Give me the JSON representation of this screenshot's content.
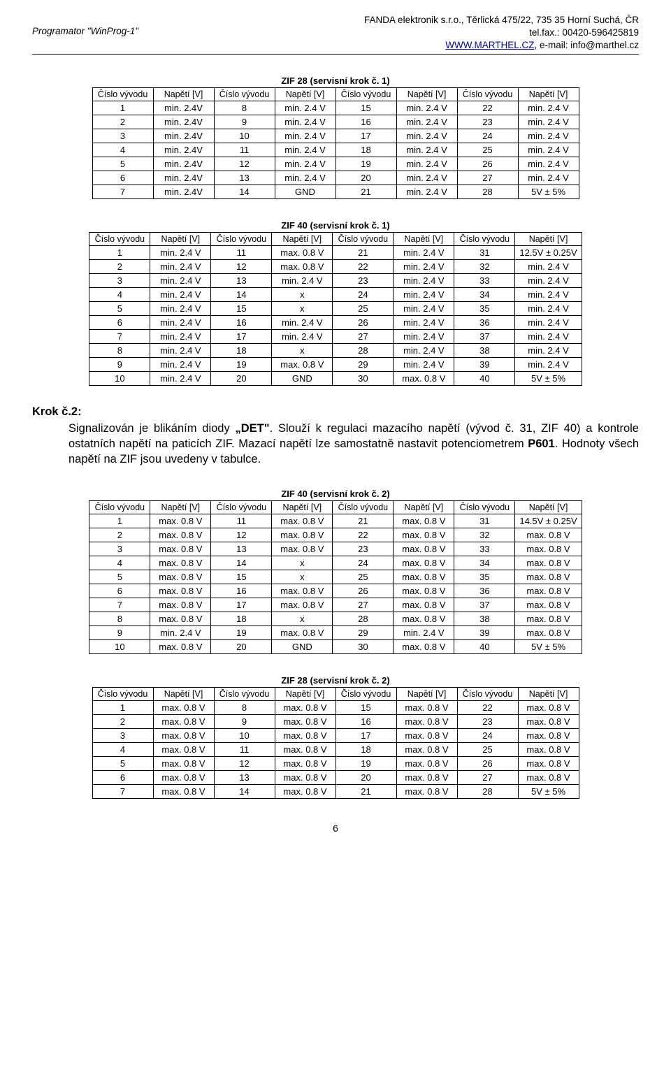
{
  "header": {
    "left": "Programator \"WinProg-1\"",
    "right1": "FANDA elektronik s.r.o., Těrlická 475/22, 735 35 Horní Suchá, ČR",
    "right2": "tel.fax.: 00420-596425819",
    "right3a": "WWW.MARTHEL.CZ",
    "right3b": ", e-mail: info@marthel.cz"
  },
  "labels": {
    "cislo": "Číslo vývodu",
    "napeti": "Napětí [V]"
  },
  "tables": {
    "t1": {
      "title": "ZIF 28 (servisní krok č. 1)",
      "cols": 4,
      "rows": [
        [
          "1",
          "min. 2.4V",
          "8",
          "min. 2.4 V",
          "15",
          "min. 2.4 V",
          "22",
          "min. 2.4 V"
        ],
        [
          "2",
          "min. 2.4V",
          "9",
          "min. 2.4 V",
          "16",
          "min. 2.4 V",
          "23",
          "min. 2.4 V"
        ],
        [
          "3",
          "min. 2.4V",
          "10",
          "min. 2.4 V",
          "17",
          "min. 2.4 V",
          "24",
          "min. 2.4 V"
        ],
        [
          "4",
          "min. 2.4V",
          "11",
          "min. 2.4 V",
          "18",
          "min. 2.4 V",
          "25",
          "min. 2.4 V"
        ],
        [
          "5",
          "min. 2.4V",
          "12",
          "min. 2.4 V",
          "19",
          "min. 2.4 V",
          "26",
          "min. 2.4 V"
        ],
        [
          "6",
          "min. 2.4V",
          "13",
          "min. 2.4 V",
          "20",
          "min. 2.4 V",
          "27",
          "min. 2.4 V"
        ],
        [
          "7",
          "min. 2.4V",
          "14",
          "GND",
          "21",
          "min. 2.4 V",
          "28",
          "5V ± 5%"
        ]
      ]
    },
    "t2": {
      "title": "ZIF 40 (servisní krok č. 1)",
      "cols": 4,
      "rows": [
        [
          "1",
          "min. 2.4 V",
          "11",
          "max. 0.8 V",
          "21",
          "min. 2.4 V",
          "31",
          "12.5V ± 0.25V"
        ],
        [
          "2",
          "min. 2.4 V",
          "12",
          "max. 0.8 V",
          "22",
          "min. 2.4 V",
          "32",
          "min. 2.4 V"
        ],
        [
          "3",
          "min. 2.4 V",
          "13",
          "min. 2.4 V",
          "23",
          "min. 2.4 V",
          "33",
          "min. 2.4 V"
        ],
        [
          "4",
          "min. 2.4 V",
          "14",
          "x",
          "24",
          "min. 2.4 V",
          "34",
          "min. 2.4 V"
        ],
        [
          "5",
          "min. 2.4 V",
          "15",
          "x",
          "25",
          "min. 2.4 V",
          "35",
          "min. 2.4 V"
        ],
        [
          "6",
          "min. 2.4 V",
          "16",
          "min. 2.4 V",
          "26",
          "min. 2.4 V",
          "36",
          "min. 2.4 V"
        ],
        [
          "7",
          "min. 2.4 V",
          "17",
          "min. 2.4 V",
          "27",
          "min. 2.4 V",
          "37",
          "min. 2.4 V"
        ],
        [
          "8",
          "min. 2.4 V",
          "18",
          "x",
          "28",
          "min. 2.4 V",
          "38",
          "min. 2.4 V"
        ],
        [
          "9",
          "min. 2.4 V",
          "19",
          "max. 0.8 V",
          "29",
          "min. 2.4 V",
          "39",
          "min. 2.4 V"
        ],
        [
          "10",
          "min. 2.4 V",
          "20",
          "GND",
          "30",
          "max. 0.8 V",
          "40",
          "5V ± 5%"
        ]
      ]
    },
    "t3": {
      "title": "ZIF 40 (servisní krok č. 2)",
      "cols": 4,
      "rows": [
        [
          "1",
          "max. 0.8 V",
          "11",
          "max. 0.8 V",
          "21",
          "max. 0.8 V",
          "31",
          "14.5V ± 0.25V"
        ],
        [
          "2",
          "max. 0.8 V",
          "12",
          "max. 0.8 V",
          "22",
          "max. 0.8 V",
          "32",
          "max. 0.8 V"
        ],
        [
          "3",
          "max. 0.8 V",
          "13",
          "max. 0.8 V",
          "23",
          "max. 0.8 V",
          "33",
          "max. 0.8 V"
        ],
        [
          "4",
          "max. 0.8 V",
          "14",
          "x",
          "24",
          "max. 0.8 V",
          "34",
          "max. 0.8 V"
        ],
        [
          "5",
          "max. 0.8 V",
          "15",
          "x",
          "25",
          "max. 0.8 V",
          "35",
          "max. 0.8 V"
        ],
        [
          "6",
          "max. 0.8 V",
          "16",
          "max. 0.8 V",
          "26",
          "max. 0.8 V",
          "36",
          "max. 0.8 V"
        ],
        [
          "7",
          "max. 0.8 V",
          "17",
          "max. 0.8 V",
          "27",
          "max. 0.8 V",
          "37",
          "max. 0.8 V"
        ],
        [
          "8",
          "max. 0.8 V",
          "18",
          "x",
          "28",
          "max. 0.8 V",
          "38",
          "max. 0.8 V"
        ],
        [
          "9",
          "min. 2.4 V",
          "19",
          "max. 0.8 V",
          "29",
          "min. 2.4 V",
          "39",
          "max. 0.8 V"
        ],
        [
          "10",
          "max. 0.8 V",
          "20",
          "GND",
          "30",
          "max. 0.8 V",
          "40",
          "5V ± 5%"
        ]
      ]
    },
    "t4": {
      "title": "ZIF 28 (servisní krok č. 2)",
      "cols": 4,
      "rows": [
        [
          "1",
          "max. 0.8 V",
          "8",
          "max. 0.8 V",
          "15",
          "max. 0.8 V",
          "22",
          "max. 0.8 V"
        ],
        [
          "2",
          "max. 0.8 V",
          "9",
          "max. 0.8 V",
          "16",
          "max. 0.8 V",
          "23",
          "max. 0.8 V"
        ],
        [
          "3",
          "max. 0.8 V",
          "10",
          "max. 0.8 V",
          "17",
          "max. 0.8 V",
          "24",
          "max. 0.8 V"
        ],
        [
          "4",
          "max. 0.8 V",
          "11",
          "max. 0.8 V",
          "18",
          "max. 0.8 V",
          "25",
          "max. 0.8 V"
        ],
        [
          "5",
          "max. 0.8 V",
          "12",
          "max. 0.8 V",
          "19",
          "max. 0.8 V",
          "26",
          "max. 0.8 V"
        ],
        [
          "6",
          "max. 0.8 V",
          "13",
          "max. 0.8 V",
          "20",
          "max. 0.8 V",
          "27",
          "max. 0.8 V"
        ],
        [
          "7",
          "max. 0.8 V",
          "14",
          "max. 0.8 V",
          "21",
          "max. 0.8 V",
          "28",
          "5V ± 5%"
        ]
      ]
    }
  },
  "step2": {
    "label": "Krok č.2:",
    "p1": "Signalizován je blikáním diody ",
    "b1": "„DET\"",
    "p2": ". Slouží k regulaci mazacího napětí (vývod č. 31, ZIF 40) a kontrole ostatních napětí na paticích ZIF. Mazací napětí lze samostatně nastavit potenciometrem ",
    "b2": "P601",
    "p3": ". Hodnoty všech napětí na ZIF jsou uvedeny v tabulce."
  },
  "pageNumber": "6"
}
